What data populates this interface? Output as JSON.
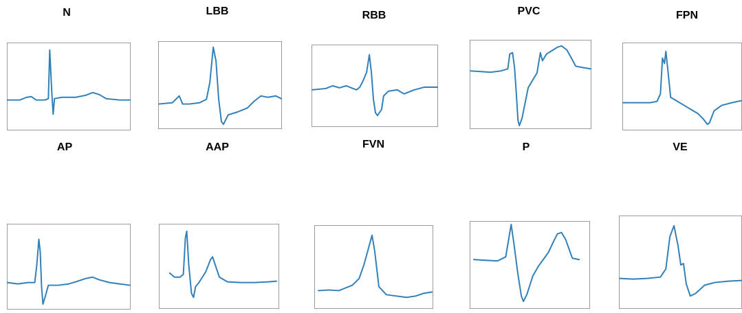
{
  "panels": [
    {
      "label": "N"
    },
    {
      "label": "LBB"
    },
    {
      "label": "RBB"
    },
    {
      "label": "PVC"
    },
    {
      "label": "FPN"
    },
    {
      "label": "AP"
    },
    {
      "label": "AAP"
    },
    {
      "label": "FVN"
    },
    {
      "label": "P"
    },
    {
      "label": "VE"
    }
  ],
  "colors": {
    "trace": "#2f7fb8",
    "frame": "#9a9a9a"
  }
}
